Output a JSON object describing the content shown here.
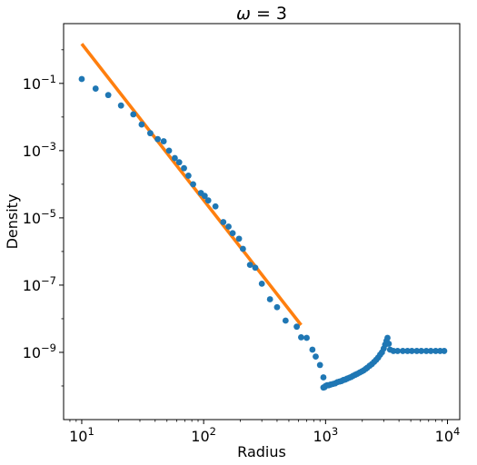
{
  "chart_data": {
    "type": "scatter",
    "title_symbol": "ω",
    "title_rest": " = 3",
    "xlabel": "Radius",
    "ylabel": "Density",
    "xscale": "log",
    "yscale": "log",
    "xlim": [
      7.1,
      12600
    ],
    "ylim": [
      1e-11,
      6.0
    ],
    "grid": false,
    "x_ticks": [
      {
        "value": 10,
        "base": "10",
        "exp": "1"
      },
      {
        "value": 100,
        "base": "10",
        "exp": "2"
      },
      {
        "value": 1000,
        "base": "10",
        "exp": "3"
      },
      {
        "value": 10000,
        "base": "10",
        "exp": "4"
      }
    ],
    "y_ticks": [
      {
        "value": 1e-09,
        "base": "10",
        "exp": "−9"
      },
      {
        "value": 1e-07,
        "base": "10",
        "exp": "−7"
      },
      {
        "value": 1e-05,
        "base": "10",
        "exp": "−5"
      },
      {
        "value": 0.001,
        "base": "10",
        "exp": "−3"
      },
      {
        "value": 0.1,
        "base": "10",
        "exp": "−1"
      }
    ],
    "colors": {
      "points": "#1f77b4",
      "fit": "#ff7f0e"
    },
    "series": [
      {
        "kind": "scatter",
        "points": [
          [
            10.0,
            0.135
          ],
          [
            13.0,
            0.07
          ],
          [
            16.5,
            0.045
          ],
          [
            21.0,
            0.022
          ],
          [
            26.5,
            0.012
          ],
          [
            31.0,
            0.006
          ],
          [
            36.5,
            0.0033
          ],
          [
            42.0,
            0.0022
          ],
          [
            47.0,
            0.0019
          ],
          [
            52.0,
            0.001
          ],
          [
            58.0,
            0.0006
          ],
          [
            63.0,
            0.00045
          ],
          [
            69.0,
            0.0003
          ],
          [
            75.0,
            0.00018
          ],
          [
            82.0,
            0.0001
          ],
          [
            95.0,
            5.5e-05
          ],
          [
            102.0,
            4.5e-05
          ],
          [
            109.0,
            3.3e-05
          ],
          [
            125.0,
            2.2e-05
          ],
          [
            145.0,
            7.5e-06
          ],
          [
            160.0,
            5.5e-06
          ],
          [
            173.0,
            3.5e-06
          ],
          [
            195.0,
            2.4e-06
          ],
          [
            210.0,
            1.2e-06
          ],
          [
            240.0,
            4e-07
          ],
          [
            265.0,
            3.3e-07
          ],
          [
            300.0,
            1.1e-07
          ],
          [
            350.0,
            3.8e-08
          ],
          [
            400.0,
            2.2e-08
          ],
          [
            470.0,
            8.8e-09
          ],
          [
            580.0,
            5.8e-09
          ],
          [
            630.0,
            2.8e-09
          ],
          [
            700.0,
            2.7e-09
          ],
          [
            780.0,
            1.2e-09
          ],
          [
            830.0,
            7.5e-10
          ],
          [
            900.0,
            4.2e-10
          ],
          [
            960.0,
            1.8e-10
          ],
          [
            960.0,
            9e-11
          ],
          [
            980.0,
            9.2e-11
          ],
          [
            1000.0,
            1e-10
          ],
          [
            1030.0,
            1.05e-10
          ],
          [
            1060.0,
            1.05e-10
          ],
          [
            1100.0,
            1.1e-10
          ],
          [
            1150.0,
            1.15e-10
          ],
          [
            1200.0,
            1.2e-10
          ],
          [
            1250.0,
            1.3e-10
          ],
          [
            1300.0,
            1.35e-10
          ],
          [
            1350.0,
            1.4e-10
          ],
          [
            1400.0,
            1.5e-10
          ],
          [
            1450.0,
            1.55e-10
          ],
          [
            1500.0,
            1.65e-10
          ],
          [
            1560.0,
            1.75e-10
          ],
          [
            1620.0,
            1.85e-10
          ],
          [
            1680.0,
            2e-10
          ],
          [
            1750.0,
            2.15e-10
          ],
          [
            1820.0,
            2.3e-10
          ],
          [
            1900.0,
            2.5e-10
          ],
          [
            1980.0,
            2.7e-10
          ],
          [
            2050.0,
            2.9e-10
          ],
          [
            2130.0,
            3.2e-10
          ],
          [
            2200.0,
            3.5e-10
          ],
          [
            2300.0,
            4e-10
          ],
          [
            2400.0,
            4.5e-10
          ],
          [
            2500.0,
            5.2e-10
          ],
          [
            2600.0,
            6e-10
          ],
          [
            2700.0,
            7e-10
          ],
          [
            2800.0,
            8.5e-10
          ],
          [
            2900.0,
            1e-09
          ],
          [
            3000.0,
            1.3e-09
          ],
          [
            3080.0,
            1.7e-09
          ],
          [
            3160.0,
            2.2e-09
          ],
          [
            3220.0,
            2.7e-09
          ],
          [
            3300.0,
            1.8e-09
          ],
          [
            3380.0,
            1.2e-09
          ],
          [
            3600.0,
            1.1e-09
          ],
          [
            3900.0,
            1.1e-09
          ],
          [
            4300.0,
            1.1e-09
          ],
          [
            4700.0,
            1.1e-09
          ],
          [
            5100.0,
            1.1e-09
          ],
          [
            5600.0,
            1.1e-09
          ],
          [
            6100.0,
            1.1e-09
          ],
          [
            6700.0,
            1.1e-09
          ],
          [
            7300.0,
            1.1e-09
          ],
          [
            8000.0,
            1.1e-09
          ],
          [
            8700.0,
            1.1e-09
          ],
          [
            9400.0,
            1.1e-09
          ]
        ]
      },
      {
        "kind": "line",
        "points": [
          [
            10.0,
            1.5
          ],
          [
            630.0,
            6.5e-09
          ]
        ]
      }
    ]
  }
}
